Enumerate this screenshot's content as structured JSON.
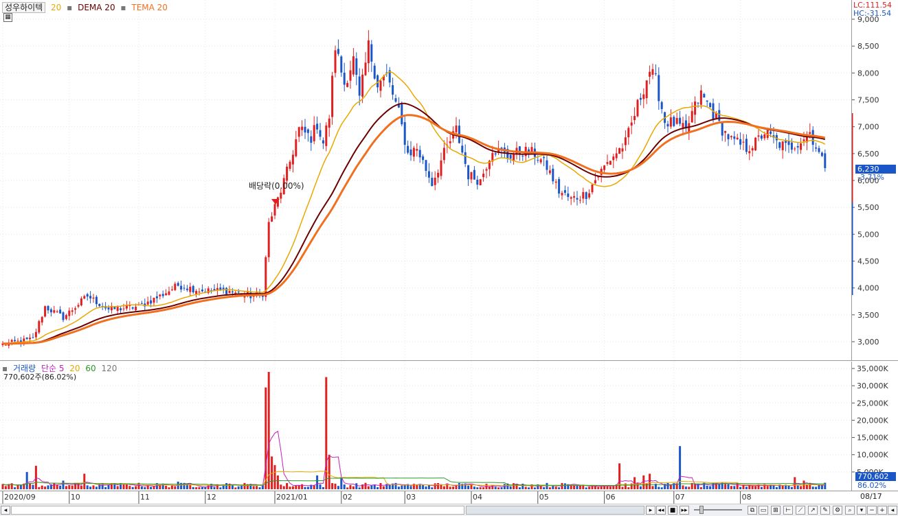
{
  "legend": {
    "stock_name": "성우하이텍",
    "ma_label": "20",
    "dema_label": "DEMA 20",
    "tema_label": "TEMA 20",
    "ma_color": "#e8a800",
    "dema_color": "#6b0000",
    "tema_color": "#f07020"
  },
  "corner": {
    "lc": "LC:111.54",
    "hc": "HC:-31.54",
    "lc_color": "#e02020",
    "hc_color": "#1a56c8"
  },
  "current_price": {
    "value": "6,230",
    "change": "-3.71%"
  },
  "dividend_label": "배당락(0.00%)",
  "volume_legend": {
    "title": "거래량",
    "sma_label": "단순 5",
    "p20": "20",
    "p60": "60",
    "p120": "120",
    "current": "770,602주(86.02%)",
    "current_value": "770,602",
    "current_ratio": "86.02%"
  },
  "price_axis_labels": [
    "9,000",
    "8,500",
    "8,000",
    "7,500",
    "7,000",
    "6,500",
    "6,000",
    "5,500",
    "5,000",
    "4,500",
    "4,000",
    "3,500",
    "3,000"
  ],
  "volume_axis_labels": [
    "35,000K",
    "30,000K",
    "25,000K",
    "20,000K",
    "15,000K",
    "10,000K",
    "5,000K"
  ],
  "date_labels": [
    "2020/09",
    "10",
    "11",
    "12",
    "2021/01",
    "02",
    "03",
    "04",
    "05",
    "06",
    "07",
    "08"
  ],
  "date_axis_end": "08/17",
  "chart_data": {
    "type": "candlestick",
    "ylim": [
      2700,
      9200
    ],
    "volume_ylim": [
      0,
      36000
    ],
    "candle_up_color": "#e02020",
    "candle_down_color": "#1a56c8",
    "price_keypoints": [
      {
        "i": 0,
        "p": 2950
      },
      {
        "i": 10,
        "p": 3050
      },
      {
        "i": 14,
        "p": 3650
      },
      {
        "i": 20,
        "p": 3450
      },
      {
        "i": 28,
        "p": 3850
      },
      {
        "i": 35,
        "p": 3600
      },
      {
        "i": 45,
        "p": 3650
      },
      {
        "i": 52,
        "p": 3850
      },
      {
        "i": 58,
        "p": 4050
      },
      {
        "i": 66,
        "p": 3950
      },
      {
        "i": 74,
        "p": 3950
      },
      {
        "i": 82,
        "p": 3850
      },
      {
        "i": 86,
        "p": 3900
      },
      {
        "i": 88,
        "p": 5200
      },
      {
        "i": 91,
        "p": 5650
      },
      {
        "i": 94,
        "p": 6150
      },
      {
        "i": 98,
        "p": 6950
      },
      {
        "i": 102,
        "p": 6800
      },
      {
        "i": 104,
        "p": 7050
      },
      {
        "i": 106,
        "p": 6700
      },
      {
        "i": 108,
        "p": 7200
      },
      {
        "i": 110,
        "p": 8500
      },
      {
        "i": 113,
        "p": 7800
      },
      {
        "i": 116,
        "p": 8250
      },
      {
        "i": 118,
        "p": 7500
      },
      {
        "i": 121,
        "p": 8500
      },
      {
        "i": 124,
        "p": 7800
      },
      {
        "i": 127,
        "p": 7950
      },
      {
        "i": 131,
        "p": 7250
      },
      {
        "i": 134,
        "p": 6500
      },
      {
        "i": 137,
        "p": 6600
      },
      {
        "i": 142,
        "p": 5950
      },
      {
        "i": 146,
        "p": 6500
      },
      {
        "i": 150,
        "p": 6950
      },
      {
        "i": 154,
        "p": 6100
      },
      {
        "i": 158,
        "p": 6000
      },
      {
        "i": 162,
        "p": 6600
      },
      {
        "i": 167,
        "p": 6450
      },
      {
        "i": 172,
        "p": 6550
      },
      {
        "i": 176,
        "p": 6500
      },
      {
        "i": 180,
        "p": 6250
      },
      {
        "i": 184,
        "p": 5800
      },
      {
        "i": 188,
        "p": 5650
      },
      {
        "i": 193,
        "p": 5750
      },
      {
        "i": 197,
        "p": 6100
      },
      {
        "i": 201,
        "p": 6400
      },
      {
        "i": 206,
        "p": 6700
      },
      {
        "i": 210,
        "p": 7400
      },
      {
        "i": 214,
        "p": 8050
      },
      {
        "i": 216,
        "p": 7850
      },
      {
        "i": 219,
        "p": 7100
      },
      {
        "i": 223,
        "p": 7050
      },
      {
        "i": 226,
        "p": 6900
      },
      {
        "i": 228,
        "p": 7250
      },
      {
        "i": 231,
        "p": 7600
      },
      {
        "i": 234,
        "p": 7350
      },
      {
        "i": 238,
        "p": 6950
      },
      {
        "i": 241,
        "p": 6750
      },
      {
        "i": 246,
        "p": 6600
      },
      {
        "i": 249,
        "p": 6700
      },
      {
        "i": 252,
        "p": 6900
      },
      {
        "i": 256,
        "p": 6700
      },
      {
        "i": 260,
        "p": 6600
      },
      {
        "i": 264,
        "p": 6750
      },
      {
        "i": 267,
        "p": 6900
      },
      {
        "i": 270,
        "p": 6500
      },
      {
        "i": 272,
        "p": 6230
      }
    ],
    "volume_spikes": [
      {
        "i": 8,
        "v": 5000
      },
      {
        "i": 11,
        "v": 6800
      },
      {
        "i": 20,
        "v": 2500
      },
      {
        "i": 27,
        "v": 4500
      },
      {
        "i": 58,
        "v": 2200
      },
      {
        "i": 87,
        "v": 29500
      },
      {
        "i": 88,
        "v": 34000
      },
      {
        "i": 89,
        "v": 9500
      },
      {
        "i": 90,
        "v": 7000
      },
      {
        "i": 91,
        "v": 4000
      },
      {
        "i": 104,
        "v": 4000
      },
      {
        "i": 107,
        "v": 32500
      },
      {
        "i": 108,
        "v": 10000
      },
      {
        "i": 112,
        "v": 3500
      },
      {
        "i": 204,
        "v": 7500
      },
      {
        "i": 209,
        "v": 3500
      },
      {
        "i": 212,
        "v": 4000
      },
      {
        "i": 214,
        "v": 4500
      },
      {
        "i": 224,
        "v": 12500
      },
      {
        "i": 262,
        "v": 3500
      },
      {
        "i": 265,
        "v": 2500
      }
    ]
  }
}
